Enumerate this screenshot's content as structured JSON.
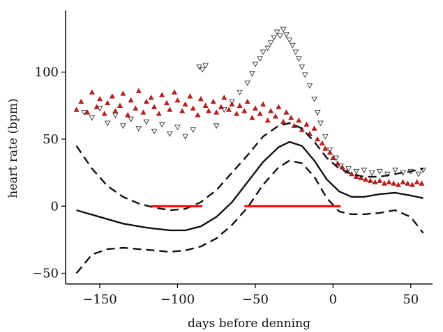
{
  "chart_data": {
    "type": "scatter",
    "title": "",
    "xlabel": "days before denning",
    "ylabel": "heart rate (bpm)",
    "xlim": [
      -172,
      64
    ],
    "ylim": [
      -58,
      146
    ],
    "x_ticks": [
      -150,
      -100,
      -50,
      0,
      50
    ],
    "y_ticks": [
      -50,
      0,
      50,
      100
    ],
    "x_tick_labels": [
      "−150",
      "−100",
      "−50",
      "0",
      "50"
    ],
    "y_tick_labels": [
      "−50",
      "0",
      "50",
      "100"
    ],
    "grid": false,
    "legend": "none",
    "colors": {
      "red_points": "#b22222",
      "open_points": "#333333",
      "smooth_line": "#111111",
      "highlight": "#ff0000"
    },
    "series": [
      {
        "kind": "scatter",
        "marker": "filled-triangle-up",
        "points": [
          [
            -165,
            72
          ],
          [
            -162,
            78
          ],
          [
            -158,
            70
          ],
          [
            -155,
            85
          ],
          [
            -152,
            74
          ],
          [
            -150,
            80
          ],
          [
            -147,
            69
          ],
          [
            -145,
            77
          ],
          [
            -142,
            82
          ],
          [
            -140,
            71
          ],
          [
            -137,
            75
          ],
          [
            -135,
            84
          ],
          [
            -132,
            68
          ],
          [
            -130,
            79
          ],
          [
            -127,
            73
          ],
          [
            -125,
            86
          ],
          [
            -122,
            70
          ],
          [
            -120,
            78
          ],
          [
            -117,
            81
          ],
          [
            -115,
            74
          ],
          [
            -112,
            69
          ],
          [
            -110,
            83
          ],
          [
            -107,
            77
          ],
          [
            -105,
            72
          ],
          [
            -102,
            85
          ],
          [
            -100,
            79
          ],
          [
            -97,
            71
          ],
          [
            -95,
            76
          ],
          [
            -92,
            82
          ],
          [
            -90,
            73
          ],
          [
            -87,
            68
          ],
          [
            -85,
            80
          ],
          [
            -82,
            75
          ],
          [
            -80,
            71
          ],
          [
            -77,
            78
          ],
          [
            -75,
            70
          ],
          [
            -72,
            74
          ],
          [
            -70,
            81
          ],
          [
            -67,
            72
          ],
          [
            -65,
            76
          ],
          [
            -62,
            69
          ],
          [
            -60,
            75
          ],
          [
            -57,
            71
          ],
          [
            -55,
            78
          ],
          [
            -52,
            66
          ],
          [
            -50,
            73
          ],
          [
            -47,
            69
          ],
          [
            -45,
            76
          ],
          [
            -42,
            64
          ],
          [
            -40,
            71
          ],
          [
            -37,
            67
          ],
          [
            -35,
            74
          ],
          [
            -32,
            63
          ],
          [
            -30,
            70
          ],
          [
            -27,
            66
          ],
          [
            -25,
            60
          ],
          [
            -22,
            64
          ],
          [
            -20,
            57
          ],
          [
            -17,
            61
          ],
          [
            -15,
            54
          ],
          [
            -12,
            58
          ],
          [
            -10,
            50
          ],
          [
            -7,
            47
          ],
          [
            -5,
            43
          ],
          [
            -2,
            40
          ],
          [
            0,
            36
          ],
          [
            3,
            32
          ],
          [
            6,
            29
          ],
          [
            9,
            26
          ],
          [
            12,
            24
          ],
          [
            15,
            22
          ],
          [
            18,
            21
          ],
          [
            21,
            20
          ],
          [
            24,
            19
          ],
          [
            27,
            18
          ],
          [
            30,
            19
          ],
          [
            33,
            17
          ],
          [
            36,
            18
          ],
          [
            39,
            17
          ],
          [
            42,
            16
          ],
          [
            45,
            18
          ],
          [
            48,
            17
          ],
          [
            51,
            16
          ],
          [
            54,
            18
          ],
          [
            57,
            17
          ]
        ]
      },
      {
        "kind": "scatter",
        "marker": "open-triangle-down",
        "points": [
          [
            -160,
            70
          ],
          [
            -155,
            66
          ],
          [
            -150,
            73
          ],
          [
            -145,
            62
          ],
          [
            -140,
            68
          ],
          [
            -135,
            60
          ],
          [
            -130,
            65
          ],
          [
            -125,
            58
          ],
          [
            -120,
            63
          ],
          [
            -115,
            56
          ],
          [
            -110,
            61
          ],
          [
            -105,
            54
          ],
          [
            -100,
            59
          ],
          [
            -95,
            52
          ],
          [
            -90,
            57
          ],
          [
            -86,
            104
          ],
          [
            -84,
            102
          ],
          [
            -82,
            105
          ],
          [
            -75,
            60
          ],
          [
            -70,
            72
          ],
          [
            -65,
            78
          ],
          [
            -60,
            85
          ],
          [
            -55,
            92
          ],
          [
            -52,
            99
          ],
          [
            -50,
            106
          ],
          [
            -47,
            110
          ],
          [
            -45,
            115
          ],
          [
            -42,
            118
          ],
          [
            -40,
            122
          ],
          [
            -38,
            126
          ],
          [
            -36,
            130
          ],
          [
            -34,
            127
          ],
          [
            -32,
            132
          ],
          [
            -30,
            128
          ],
          [
            -28,
            124
          ],
          [
            -26,
            120
          ],
          [
            -24,
            115
          ],
          [
            -22,
            110
          ],
          [
            -20,
            104
          ],
          [
            -18,
            98
          ],
          [
            -15,
            90
          ],
          [
            -12,
            80
          ],
          [
            -10,
            70
          ],
          [
            -8,
            62
          ],
          [
            -5,
            52
          ],
          [
            -2,
            42
          ],
          [
            2,
            36
          ],
          [
            5,
            30
          ],
          [
            10,
            28
          ],
          [
            15,
            26
          ],
          [
            20,
            27
          ],
          [
            25,
            25
          ],
          [
            30,
            26
          ],
          [
            35,
            24
          ],
          [
            40,
            27
          ],
          [
            45,
            25
          ],
          [
            50,
            26
          ],
          [
            55,
            24
          ],
          [
            58,
            27
          ]
        ]
      },
      {
        "kind": "line",
        "style": "solid",
        "points": [
          [
            -165,
            -3
          ],
          [
            -150,
            -8
          ],
          [
            -135,
            -13
          ],
          [
            -120,
            -16
          ],
          [
            -105,
            -18
          ],
          [
            -95,
            -18
          ],
          [
            -85,
            -15
          ],
          [
            -75,
            -8
          ],
          [
            -65,
            3
          ],
          [
            -55,
            18
          ],
          [
            -45,
            33
          ],
          [
            -35,
            44
          ],
          [
            -28,
            48
          ],
          [
            -20,
            45
          ],
          [
            -12,
            34
          ],
          [
            -4,
            20
          ],
          [
            4,
            11
          ],
          [
            12,
            7
          ],
          [
            20,
            7
          ],
          [
            30,
            9
          ],
          [
            40,
            10
          ],
          [
            50,
            8
          ],
          [
            58,
            6
          ]
        ]
      },
      {
        "kind": "line",
        "style": "dashed",
        "points": [
          [
            -165,
            45
          ],
          [
            -155,
            28
          ],
          [
            -145,
            15
          ],
          [
            -135,
            7
          ],
          [
            -125,
            2
          ],
          [
            -115,
            -1
          ],
          [
            -105,
            -3
          ],
          [
            -95,
            -2
          ],
          [
            -85,
            3
          ],
          [
            -75,
            12
          ],
          [
            -65,
            25
          ],
          [
            -55,
            38
          ],
          [
            -45,
            52
          ],
          [
            -35,
            60
          ],
          [
            -28,
            62
          ],
          [
            -20,
            58
          ],
          [
            -12,
            48
          ],
          [
            -4,
            36
          ],
          [
            4,
            28
          ],
          [
            12,
            24
          ],
          [
            20,
            22
          ],
          [
            30,
            22
          ],
          [
            40,
            24
          ],
          [
            50,
            26
          ],
          [
            58,
            28
          ]
        ]
      },
      {
        "kind": "line",
        "style": "dashed",
        "points": [
          [
            -165,
            -50
          ],
          [
            -155,
            -36
          ],
          [
            -145,
            -32
          ],
          [
            -135,
            -31
          ],
          [
            -125,
            -32
          ],
          [
            -115,
            -33
          ],
          [
            -105,
            -34
          ],
          [
            -95,
            -33
          ],
          [
            -85,
            -30
          ],
          [
            -75,
            -24
          ],
          [
            -65,
            -14
          ],
          [
            -55,
            -1
          ],
          [
            -45,
            16
          ],
          [
            -35,
            29
          ],
          [
            -28,
            34
          ],
          [
            -20,
            32
          ],
          [
            -12,
            22
          ],
          [
            -4,
            6
          ],
          [
            4,
            -4
          ],
          [
            12,
            -6
          ],
          [
            20,
            -6
          ],
          [
            30,
            -5
          ],
          [
            40,
            -3
          ],
          [
            50,
            -8
          ],
          [
            58,
            -20
          ]
        ]
      },
      {
        "kind": "segment",
        "style": "highlight",
        "points": [
          [
            -117,
            0
          ],
          [
            -84,
            0
          ]
        ]
      },
      {
        "kind": "segment",
        "style": "highlight",
        "points": [
          [
            -57,
            0
          ],
          [
            5,
            0
          ]
        ]
      }
    ]
  }
}
